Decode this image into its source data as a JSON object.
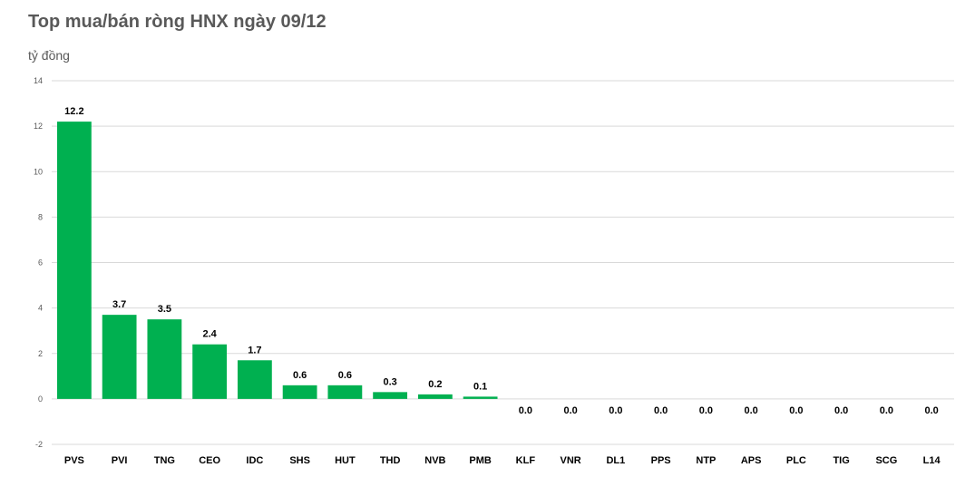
{
  "title": "Top mua/bán ròng HNX ngày 09/12",
  "unit_label": "tỷ đồng",
  "colors": {
    "bar": "#00b050",
    "grid": "#d9d9d9",
    "text": "#595959",
    "label": "#000000"
  },
  "chart_data": {
    "type": "bar",
    "title": "Top mua/bán ròng HNX ngày 09/12",
    "ylabel": "tỷ đồng",
    "xlabel": "",
    "ylim": [
      -2,
      14
    ],
    "yticks": [
      -2,
      0,
      2,
      4,
      6,
      8,
      10,
      12,
      14
    ],
    "grid": true,
    "legend": "none",
    "categories": [
      "PVS",
      "PVI",
      "TNG",
      "CEO",
      "IDC",
      "SHS",
      "HUT",
      "THD",
      "NVB",
      "PMB",
      "KLF",
      "VNR",
      "DL1",
      "PPS",
      "NTP",
      "APS",
      "PLC",
      "TIG",
      "SCG",
      "L14"
    ],
    "values": [
      12.2,
      3.7,
      3.5,
      2.4,
      1.7,
      0.6,
      0.6,
      0.3,
      0.2,
      0.1,
      0.0,
      0.0,
      0.0,
      0.0,
      0.0,
      0.0,
      0.0,
      0.0,
      0.0,
      0.0
    ],
    "data_labels": [
      "12.2",
      "3.7",
      "3.5",
      "2.4",
      "1.7",
      "0.6",
      "0.6",
      "0.3",
      "0.2",
      "0.1",
      "0.0",
      "0.0",
      "0.0",
      "0.0",
      "0.0",
      "0.0",
      "0.0",
      "0.0",
      "0.0",
      "0.0"
    ]
  }
}
